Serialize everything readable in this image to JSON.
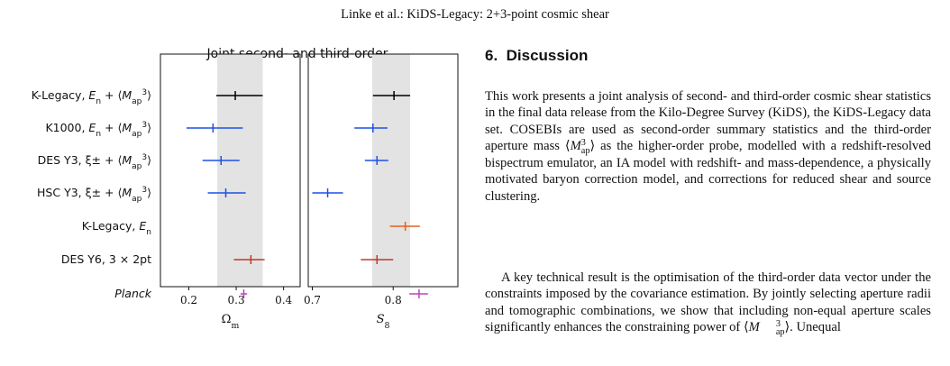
{
  "running_header": "Linke et al.: KiDS-Legacy: 2+3-point cosmic shear",
  "figure": {
    "chart_data": {
      "type": "scatter",
      "title": "Joint second- and third-order",
      "rows": [
        {
          "label": "K-Legacy, E_n + ⟨M_ap^3⟩",
          "color": "#000000"
        },
        {
          "label": "K1000, E_n + ⟨M_ap^3⟩",
          "color": "#1f4fe8"
        },
        {
          "label": "DES Y3, ξ± + ⟨M_ap^3⟩",
          "color": "#1f4fe8"
        },
        {
          "label": "HSC Y3, ξ± + ⟨M_ap^3⟩",
          "color": "#1f4fe8"
        },
        {
          "label": "K-Legacy, E_n",
          "color": "#e8601c"
        },
        {
          "label": "DES Y6, 3 × 2pt",
          "color": "#c0392b"
        },
        {
          "label": "Planck",
          "color": "#c040c0"
        }
      ],
      "panels": [
        {
          "xlabel": "Ωm",
          "xlim": [
            0.14,
            0.435
          ],
          "xticks": [
            0.2,
            0.3,
            0.4
          ],
          "band": [
            0.26,
            0.356
          ],
          "points": [
            {
              "x": 0.298,
              "lo": 0.258,
              "hi": 0.356
            },
            {
              "x": 0.251,
              "lo": 0.195,
              "hi": 0.314
            },
            {
              "x": 0.268,
              "lo": 0.229,
              "hi": 0.307
            },
            {
              "x": 0.278,
              "lo": 0.24,
              "hi": 0.32
            },
            null,
            {
              "x": 0.331,
              "lo": 0.295,
              "hi": 0.36
            },
            {
              "x": 0.316,
              "lo": 0.309,
              "hi": 0.323
            }
          ]
        },
        {
          "xlabel": "S8",
          "xlim": [
            0.695,
            0.88
          ],
          "xticks": [
            0.7,
            0.8
          ],
          "band": [
            0.774,
            0.821
          ],
          "points": [
            {
              "x": 0.801,
              "lo": 0.775,
              "hi": 0.821
            },
            {
              "x": 0.775,
              "lo": 0.752,
              "hi": 0.793
            },
            {
              "x": 0.78,
              "lo": 0.765,
              "hi": 0.794
            },
            {
              "x": 0.719,
              "lo": 0.7,
              "hi": 0.738
            },
            {
              "x": 0.815,
              "lo": 0.796,
              "hi": 0.833
            },
            {
              "x": 0.78,
              "lo": 0.76,
              "hi": 0.8
            },
            {
              "x": 0.832,
              "lo": 0.82,
              "hi": 0.843
            }
          ]
        }
      ]
    }
  },
  "section": {
    "number": "6.",
    "title": "Discussion"
  },
  "paragraphs": [
    "This work presents a joint analysis of second- and third-order cosmic shear statistics in the final data release from the Kilo-Degree Survey (KiDS), the KiDS-Legacy data set. COSEBIs are used as second-order summary statistics and the third-order aperture mass ⟨M_ap^3⟩ as the higher-order probe, modelled with a redshift-resolved bispectrum emulator, an IA model with redshift- and mass-dependence, a physically motivated baryon correction model, and corrections for reduced shear and source clustering.",
    "A key technical result is the optimisation of the third-order data vector under the constraints imposed by the covariance estimation. By jointly selecting aperture radii and tomographic combinations, we show that including non-equal aperture scales significantly enhances the constraining power of ⟨M_ap^3⟩. Unequal"
  ]
}
